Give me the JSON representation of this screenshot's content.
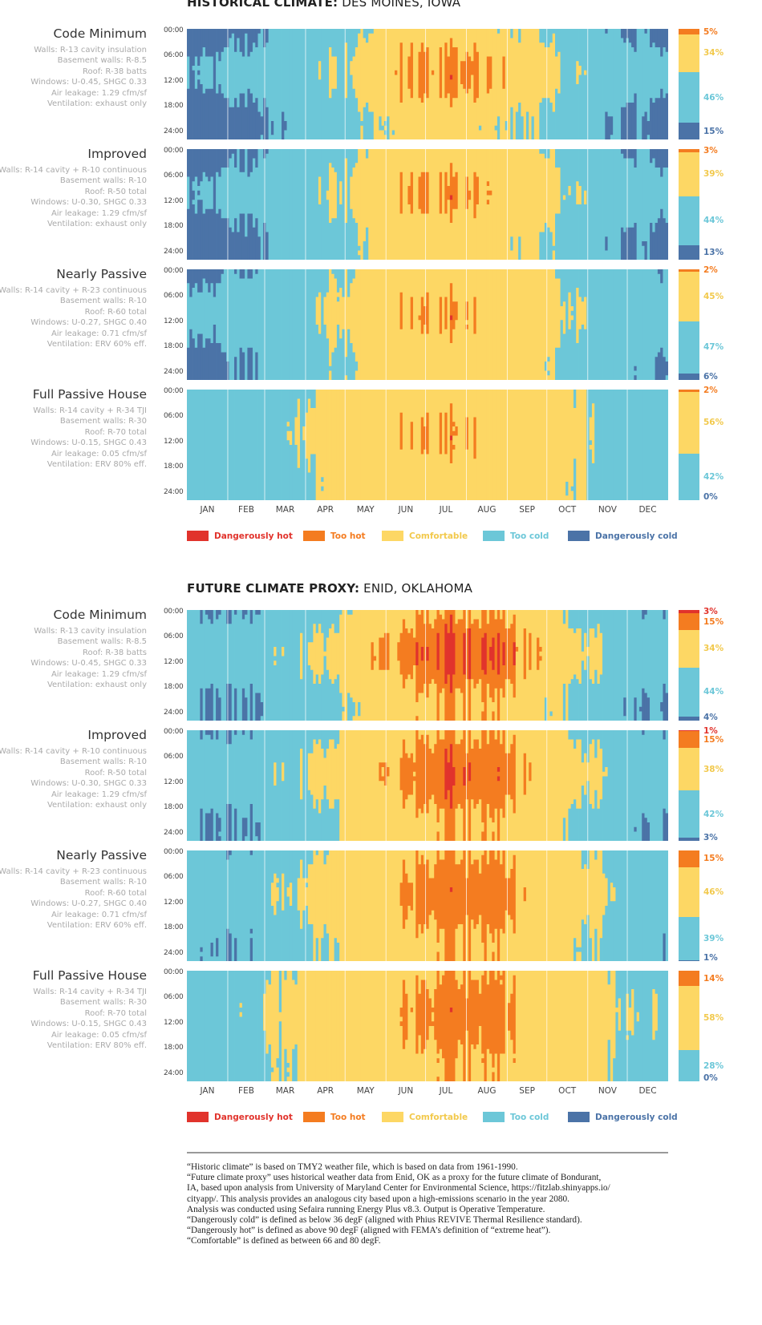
{
  "colors": {
    "dangerously_hot": "#e1332c",
    "too_hot": "#f47c20",
    "comfortable": "#fdd764",
    "too_cold": "#6cc7d8",
    "dangerously_cold": "#4b73a7"
  },
  "chart_data": [
    {
      "type": "heatmap",
      "title_bold": "HISTORICAL CLIMATE:",
      "title_rest": " DES MOINES, IOWA",
      "x_ticks": [
        "JAN",
        "FEB",
        "MAR",
        "APR",
        "MAY",
        "JUN",
        "JUL",
        "AUG",
        "SEP",
        "OCT",
        "NOV",
        "DEC"
      ],
      "y_ticks": [
        "00:00",
        "06:00",
        "12:00",
        "18:00",
        "24:00"
      ],
      "legend": [
        "Dangerously hot",
        "Too hot",
        "Comfortable",
        "Too cold",
        "Dangerously cold"
      ],
      "panels": [
        {
          "name": "Code Minimum",
          "specs": [
            "Walls: R-13 cavity insulation",
            "Basement walls: R-8.5",
            "Roof: R-38 batts",
            "Windows: U-0.45, SHGC 0.33",
            "Air leakage: 1.29 cfm/sf",
            "Ventilation: exhaust only"
          ],
          "summary": {
            "dangerously_hot": null,
            "too_hot": "5%",
            "comfortable": "34%",
            "too_cold": "46%",
            "dangerously_cold": "15%"
          }
        },
        {
          "name": "Improved",
          "specs": [
            "Walls: R-14 cavity + R-10 continuous",
            "Basement walls: R-10",
            "Roof: R-50 total",
            "Windows: U-0.30, SHGC 0.33",
            "Air leakage: 1.29 cfm/sf",
            "Ventilation: exhaust only"
          ],
          "summary": {
            "dangerously_hot": null,
            "too_hot": "3%",
            "comfortable": "39%",
            "too_cold": "44%",
            "dangerously_cold": "13%"
          }
        },
        {
          "name": "Nearly Passive",
          "specs": [
            "Walls: R-14 cavity + R-23 continuous",
            "Basement walls: R-10",
            "Roof: R-60 total",
            "Windows: U-0.27, SHGC 0.40",
            "Air leakage: 0.71 cfm/sf",
            "Ventilation: ERV 60% eff."
          ],
          "summary": {
            "dangerously_hot": null,
            "too_hot": "2%",
            "comfortable": "45%",
            "too_cold": "47%",
            "dangerously_cold": "6%"
          }
        },
        {
          "name": "Full Passive House",
          "specs": [
            "Walls: R-14 cavity + R-34 TJI",
            "Basement walls: R-30",
            "Roof: R-70 total",
            "Windows: U-0.15, SHGC 0.43",
            "Air leakage: 0.05 cfm/sf",
            "Ventilation: ERV 80% eff."
          ],
          "summary": {
            "dangerously_hot": null,
            "too_hot": "2%",
            "comfortable": "56%",
            "too_cold": "42%",
            "dangerously_cold": "0%"
          }
        }
      ]
    },
    {
      "type": "heatmap",
      "title_bold": "FUTURE CLIMATE PROXY:",
      "title_rest": " ENID, OKLAHOMA",
      "x_ticks": [
        "JAN",
        "FEB",
        "MAR",
        "APR",
        "MAY",
        "JUN",
        "JUL",
        "AUG",
        "SEP",
        "OCT",
        "NOV",
        "DEC"
      ],
      "y_ticks": [
        "00:00",
        "06:00",
        "12:00",
        "18:00",
        "24:00"
      ],
      "legend": [
        "Dangerously hot",
        "Too hot",
        "Comfortable",
        "Too cold",
        "Dangerously cold"
      ],
      "panels": [
        {
          "name": "Code Minimum",
          "specs": [
            "Walls: R-13 cavity insulation",
            "Basement walls: R-8.5",
            "Roof: R-38 batts",
            "Windows: U-0.45, SHGC 0.33",
            "Air leakage: 1.29 cfm/sf",
            "Ventilation: exhaust only"
          ],
          "summary": {
            "dangerously_hot": "3%",
            "too_hot": "15%",
            "comfortable": "34%",
            "too_cold": "44%",
            "dangerously_cold": "4%"
          }
        },
        {
          "name": "Improved",
          "specs": [
            "Walls: R-14 cavity + R-10 continuous",
            "Basement walls: R-10",
            "Roof: R-50 total",
            "Windows: U-0.30, SHGC 0.33",
            "Air leakage: 1.29 cfm/sf",
            "Ventilation: exhaust only"
          ],
          "summary": {
            "dangerously_hot": "1%",
            "too_hot": "15%",
            "comfortable": "38%",
            "too_cold": "42%",
            "dangerously_cold": "3%"
          }
        },
        {
          "name": "Nearly Passive",
          "specs": [
            "Walls: R-14 cavity + R-23 continuous",
            "Basement walls: R-10",
            "Roof: R-60 total",
            "Windows: U-0.27, SHGC 0.40",
            "Air leakage: 0.71 cfm/sf",
            "Ventilation: ERV 60% eff."
          ],
          "summary": {
            "dangerously_hot": null,
            "too_hot": "15%",
            "comfortable": "46%",
            "too_cold": "39%",
            "dangerously_cold": "1%"
          }
        },
        {
          "name": "Full Passive House",
          "specs": [
            "Walls: R-14 cavity + R-34 TJI",
            "Basement walls: R-30",
            "Roof: R-70 total",
            "Windows: U-0.15, SHGC 0.43",
            "Air leakage: 0.05 cfm/sf",
            "Ventilation: ERV 80% eff."
          ],
          "summary": {
            "dangerously_hot": null,
            "too_hot": "14%",
            "comfortable": "58%",
            "too_cold": "28%",
            "dangerously_cold": "0%"
          }
        }
      ]
    }
  ],
  "notes": [
    "“Historic climate” is based on TMY2 weather file, which is based on data from 1961-1990.",
    "“Future climate proxy” uses historical weather data from Enid, OK as a proxy for the future climate of Bondurant,",
    "IA, based upon analysis from University of Maryland Center for Environmental Science, https://fitzlab.shinyapps.io/",
    "cityapp/. This analysis provides an analogous city based upon a high-emissions scenario in the year 2080.",
    "Analysis was conducted using Sefaira running Energy Plus v8.3. Output is Operative Temperature.",
    "“Dangerously cold” is defined as below 36 degF (aligned with Phius REVIVE Thermal Resilience standard).",
    "“Dangerously hot” is defined as above 90 degF (aligned with FEMA’s definition of “extreme heat”).",
    "“Comfortable” is defined as between 66 and 80 degF."
  ]
}
